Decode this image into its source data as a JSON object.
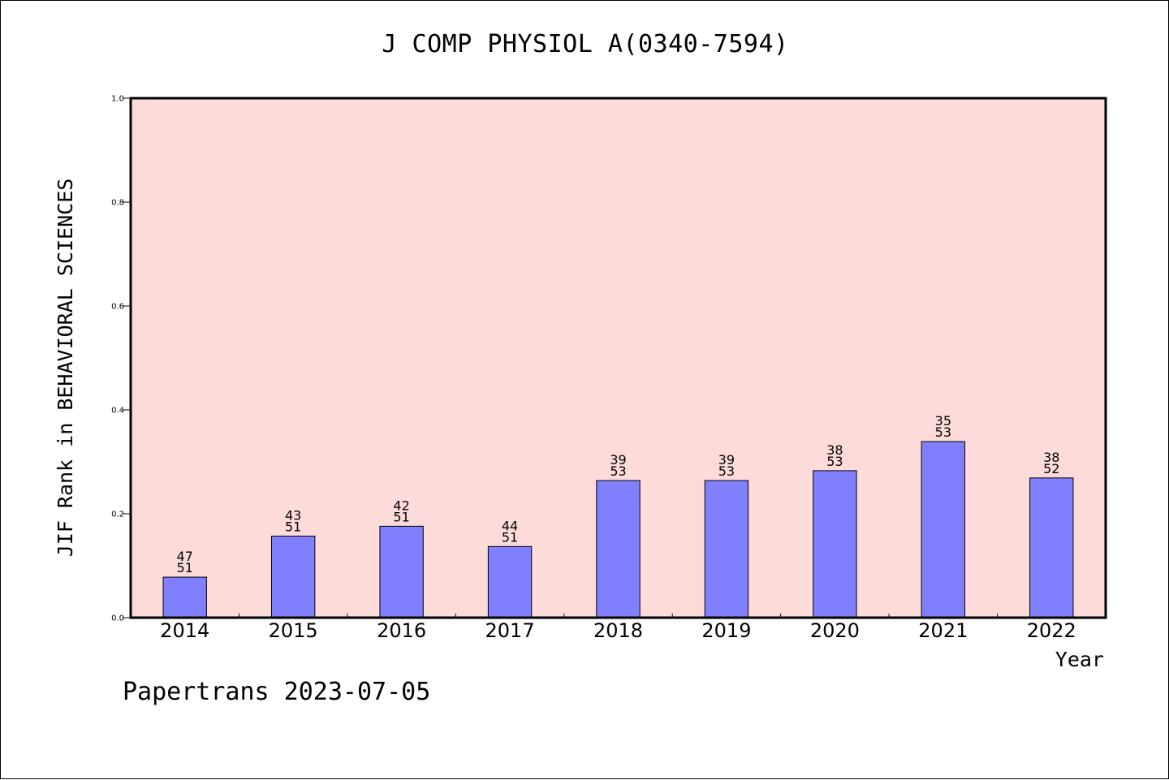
{
  "chart_data": {
    "type": "bar",
    "title": "J COMP PHYSIOL A(0340-7594)",
    "xlabel": "Year",
    "ylabel": "JIF Rank in BEHAVIORAL SCIENCES",
    "categories": [
      "2014",
      "2015",
      "2016",
      "2017",
      "2018",
      "2019",
      "2020",
      "2021",
      "2022"
    ],
    "values": [
      0.078,
      0.157,
      0.176,
      0.137,
      0.264,
      0.264,
      0.283,
      0.339,
      0.269
    ],
    "labels_top": [
      "47",
      "43",
      "42",
      "44",
      "39",
      "39",
      "38",
      "35",
      "38"
    ],
    "labels_bottom": [
      "51",
      "51",
      "51",
      "51",
      "53",
      "53",
      "53",
      "53",
      "52"
    ],
    "ylim": [
      0,
      1.0
    ],
    "yticks": [
      "0.0",
      "0.2",
      "0.4",
      "0.6",
      "0.8",
      "1.0"
    ],
    "grid": false,
    "colors": {
      "plot_background": "#fddbd8",
      "bar": "#8080ff"
    }
  },
  "footer": {
    "text": "Papertrans 2023-07-05"
  }
}
